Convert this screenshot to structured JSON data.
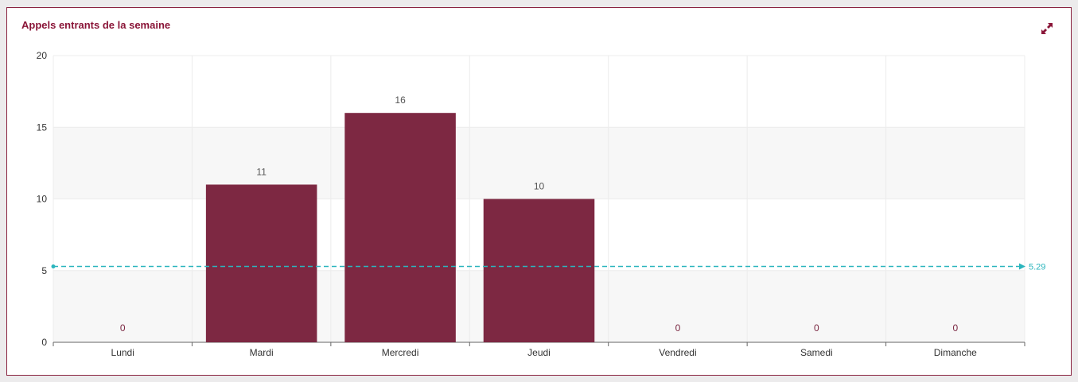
{
  "panel": {
    "title": "Appels entrants de la semaine",
    "expand_icon": "expand-icon"
  },
  "colors": {
    "bar": "#7d2842",
    "title": "#8a1538",
    "average_line": "#2bb5bd",
    "border": "#8a2340"
  },
  "chart_data": {
    "type": "bar",
    "categories": [
      "Lundi",
      "Mardi",
      "Mercredi",
      "Jeudi",
      "Vendredi",
      "Samedi",
      "Dimanche"
    ],
    "values": [
      0,
      11,
      16,
      10,
      0,
      0,
      0
    ],
    "data_labels": [
      "0",
      "11",
      "16",
      "10",
      "0",
      "0",
      "0"
    ],
    "ylim": [
      0,
      20
    ],
    "yticks": [
      0,
      5,
      10,
      15,
      20
    ],
    "average_line": {
      "value": 5.29,
      "label": "5.29"
    },
    "grid": true,
    "title": "Appels entrants de la semaine",
    "xlabel": "",
    "ylabel": ""
  }
}
